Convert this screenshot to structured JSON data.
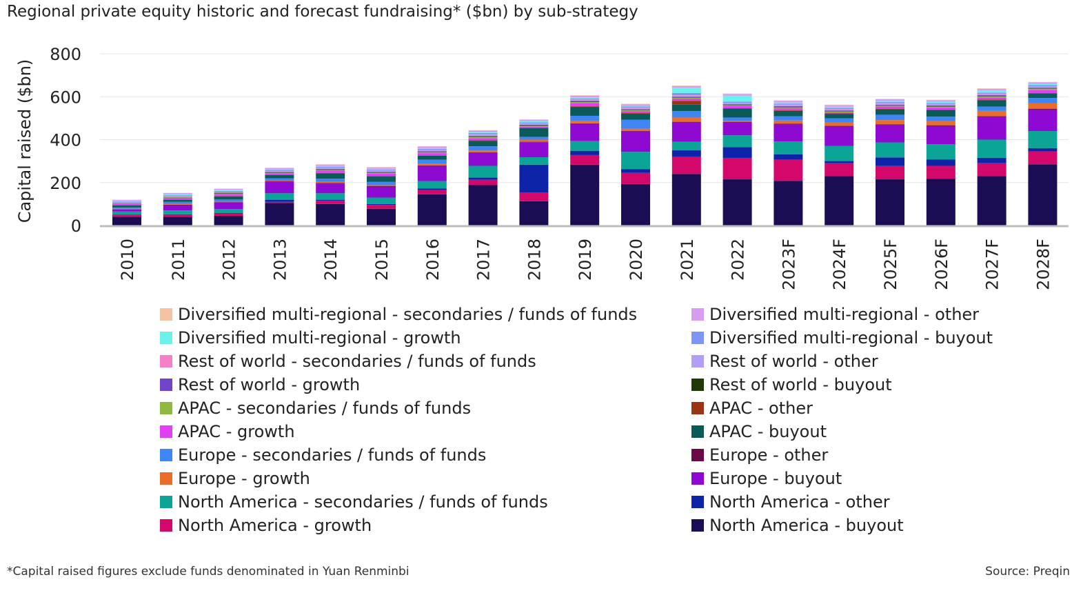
{
  "chart_data": {
    "type": "bar",
    "stacked": true,
    "title": "Regional private equity historic and forecast fundraising* ($bn) by sub-strategy",
    "xlabel": "",
    "ylabel": "Capital raised ($bn)",
    "ylim": [
      0,
      800
    ],
    "yticks": [
      0,
      200,
      400,
      600,
      800
    ],
    "grid": true,
    "legend_position": "bottom",
    "categories": [
      "2010",
      "2011",
      "2012",
      "2013",
      "2014",
      "2015",
      "2016",
      "2017",
      "2018",
      "2019",
      "2020",
      "2021",
      "2022",
      "2023F",
      "2024F",
      "2025F",
      "2026F",
      "2027F",
      "2028F"
    ],
    "series": [
      {
        "name": "North America - buyout",
        "color": "#1b0c53",
        "values": [
          40,
          40,
          45,
          105,
          100,
          78,
          145,
          188,
          113,
          283,
          193,
          240,
          215,
          208,
          230,
          215,
          218,
          230,
          285
        ]
      },
      {
        "name": "North America - growth",
        "color": "#d4086a",
        "values": [
          8,
          10,
          10,
          5,
          15,
          18,
          20,
          25,
          40,
          45,
          52,
          80,
          100,
          98,
          60,
          62,
          60,
          60,
          60
        ]
      },
      {
        "name": "North America - other",
        "color": "#0e24a8",
        "values": [
          2,
          2,
          3,
          10,
          5,
          4,
          7,
          10,
          130,
          20,
          18,
          30,
          50,
          25,
          10,
          40,
          30,
          25,
          15
        ]
      },
      {
        "name": "North America - secondaries / funds of funds",
        "color": "#0ba497",
        "values": [
          15,
          18,
          18,
          30,
          30,
          30,
          35,
          55,
          35,
          45,
          80,
          40,
          55,
          60,
          70,
          70,
          70,
          85,
          80
        ]
      },
      {
        "name": "Europe - buyout",
        "color": "#8e09d1",
        "values": [
          10,
          25,
          30,
          55,
          45,
          50,
          70,
          60,
          70,
          80,
          95,
          90,
          60,
          80,
          90,
          80,
          85,
          105,
          100
        ]
      },
      {
        "name": "Europe - other",
        "color": "#6a0848",
        "values": [
          1,
          2,
          2,
          2,
          3,
          3,
          3,
          3,
          2,
          3,
          3,
          3,
          3,
          3,
          4,
          4,
          4,
          4,
          4
        ]
      },
      {
        "name": "Europe - growth",
        "color": "#ea6d2b",
        "values": [
          2,
          3,
          3,
          3,
          5,
          5,
          7,
          8,
          10,
          10,
          10,
          20,
          5,
          15,
          15,
          20,
          20,
          25,
          25
        ]
      },
      {
        "name": "Europe - secondaries / funds of funds",
        "color": "#3e86f5",
        "values": [
          6,
          10,
          10,
          10,
          15,
          15,
          20,
          20,
          13,
          25,
          42,
          30,
          15,
          20,
          20,
          25,
          20,
          20,
          25
        ]
      },
      {
        "name": "APAC - buyout",
        "color": "#0a5a5a",
        "values": [
          10,
          10,
          15,
          15,
          25,
          25,
          18,
          25,
          40,
          40,
          28,
          30,
          40,
          25,
          20,
          25,
          30,
          30,
          20
        ]
      },
      {
        "name": "APAC - other",
        "color": "#9a3414",
        "values": [
          1,
          1,
          1,
          2,
          2,
          2,
          2,
          3,
          2,
          4,
          4,
          18,
          3,
          3,
          3,
          3,
          3,
          3,
          3
        ]
      },
      {
        "name": "APAC - growth",
        "color": "#e03ff3",
        "values": [
          6,
          8,
          10,
          6,
          10,
          12,
          10,
          10,
          5,
          15,
          8,
          10,
          10,
          10,
          5,
          10,
          10,
          10,
          15
        ]
      },
      {
        "name": "APAC - secondaries / funds of funds",
        "color": "#8fba3f",
        "values": [
          2,
          2,
          2,
          2,
          3,
          3,
          4,
          6,
          4,
          5,
          4,
          4,
          4,
          4,
          4,
          4,
          4,
          5,
          5
        ]
      },
      {
        "name": "Rest of world - buyout",
        "color": "#1f3a06",
        "values": [
          1,
          1,
          2,
          2,
          2,
          2,
          2,
          2,
          2,
          2,
          2,
          2,
          2,
          2,
          2,
          2,
          2,
          2,
          2
        ]
      },
      {
        "name": "Rest of world - growth",
        "color": "#7045cc",
        "values": [
          1,
          1,
          2,
          2,
          3,
          3,
          3,
          3,
          3,
          3,
          3,
          3,
          3,
          3,
          3,
          3,
          3,
          3,
          3
        ]
      },
      {
        "name": "Rest of world - other",
        "color": "#b49df4",
        "values": [
          3,
          3,
          3,
          4,
          5,
          5,
          5,
          5,
          5,
          5,
          5,
          5,
          5,
          5,
          5,
          5,
          5,
          5,
          5
        ]
      },
      {
        "name": "Rest of world - secondaries / funds of funds",
        "color": "#f481c8",
        "values": [
          1,
          1,
          1,
          1,
          1,
          1,
          1,
          2,
          2,
          2,
          2,
          2,
          2,
          2,
          2,
          2,
          2,
          2,
          2
        ]
      },
      {
        "name": "Diversified multi-regional - buyout",
        "color": "#7d96f5",
        "values": [
          3,
          4,
          4,
          5,
          5,
          5,
          5,
          6,
          5,
          5,
          5,
          10,
          5,
          5,
          5,
          5,
          5,
          5,
          5
        ]
      },
      {
        "name": "Diversified multi-regional - growth",
        "color": "#6cf0ea",
        "values": [
          3,
          5,
          5,
          2,
          3,
          3,
          3,
          4,
          5,
          5,
          3,
          25,
          28,
          5,
          5,
          5,
          5,
          10,
          5
        ]
      },
      {
        "name": "Diversified multi-regional - other",
        "color": "#d79cf2",
        "values": [
          4,
          5,
          5,
          7,
          7,
          7,
          8,
          8,
          7,
          8,
          8,
          8,
          8,
          8,
          8,
          8,
          8,
          8,
          8
        ]
      },
      {
        "name": "Diversified multi-regional - secondaries / funds of funds",
        "color": "#f5c3a4",
        "values": [
          1,
          1,
          1,
          1,
          1,
          1,
          1,
          1,
          1,
          2,
          2,
          2,
          2,
          2,
          2,
          2,
          2,
          2,
          2
        ]
      }
    ],
    "legend_order": [
      "Diversified multi-regional - secondaries / funds of funds",
      "Diversified multi-regional - other",
      "Diversified multi-regional - growth",
      "Diversified multi-regional - buyout",
      "Rest of world - secondaries / funds of funds",
      "Rest of world - other",
      "Rest of world - growth",
      "Rest of world - buyout",
      "APAC - secondaries / funds of funds",
      "APAC - other",
      "APAC - growth",
      "APAC - buyout",
      "Europe - secondaries / funds of funds",
      "Europe - other",
      "Europe - growth",
      "Europe - buyout",
      "North America - secondaries / funds of funds",
      "North America - other",
      "North America - growth",
      "North America - buyout"
    ]
  },
  "footnote": "*Capital raised figures exclude funds denominated in Yuan Renminbi",
  "source": "Source: Preqin"
}
